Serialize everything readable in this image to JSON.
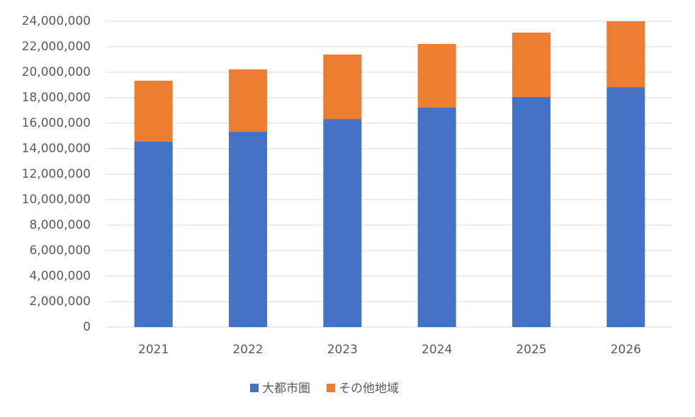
{
  "chart_data": {
    "type": "stacked-bar",
    "categories": [
      "2021",
      "2022",
      "2023",
      "2024",
      "2025",
      "2026"
    ],
    "series": [
      {
        "name": "大都市圏",
        "color": "#4472c4",
        "values": [
          14560000,
          15330000,
          16330000,
          17220000,
          18060000,
          18830000
        ]
      },
      {
        "name": "その他地域",
        "color": "#ed7d31",
        "values": [
          4770000,
          4890000,
          5060000,
          5000000,
          5050000,
          5170000
        ]
      }
    ],
    "ylim": [
      0,
      24000000
    ],
    "yticks": [
      0,
      {
        "value": 2000000,
        "label": "2,000,000"
      },
      {
        "value": 4000000,
        "label": "4,000,000"
      },
      {
        "value": 6000000,
        "label": "6,000,000"
      },
      {
        "value": 8000000,
        "label": "8,000,000"
      },
      {
        "value": 10000000,
        "label": "10,000,000"
      },
      {
        "value": 12000000,
        "label": "12,000,000"
      },
      {
        "value": 14000000,
        "label": "14,000,000"
      },
      {
        "value": 16000000,
        "label": "16,000,000"
      },
      {
        "value": 18000000,
        "label": "18,000,000"
      },
      {
        "value": 20000000,
        "label": "20,000,000"
      },
      {
        "value": 22000000,
        "label": "22,000,000"
      },
      {
        "value": 24000000,
        "label": "24,000,000"
      }
    ],
    "grid": true,
    "legend": "bottom"
  }
}
